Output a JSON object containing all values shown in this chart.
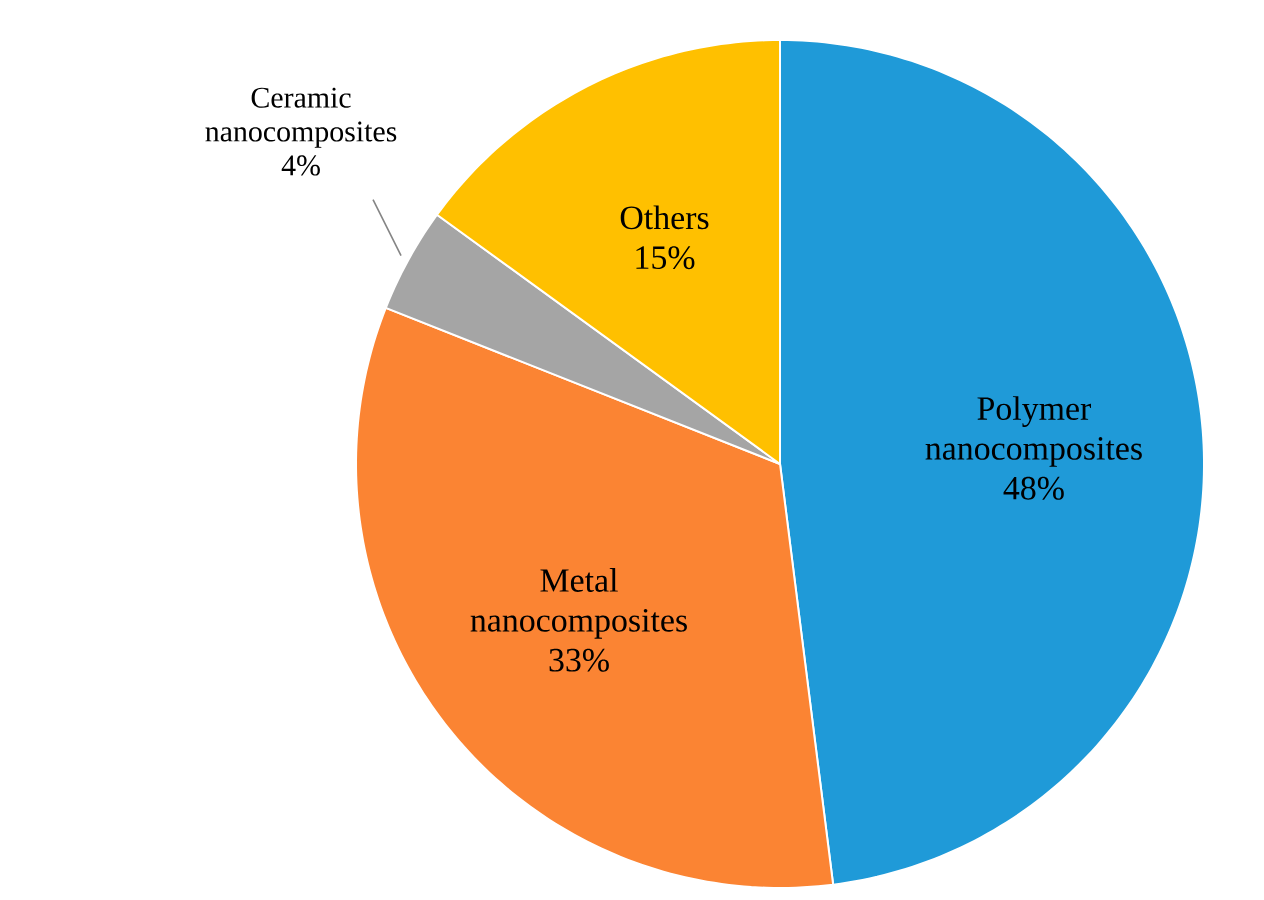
{
  "chart_data": {
    "type": "pie",
    "categories": [
      "Polymer nanocomposites",
      "Metal nanocomposites",
      "Ceramic nanocomposites",
      "Others"
    ],
    "values": [
      48,
      33,
      4,
      15
    ],
    "value_labels": [
      "48%",
      "33%",
      "4%",
      "15%"
    ],
    "colors": [
      "#1f9ad8",
      "#fb8433",
      "#a5a5a5",
      "#ffc000"
    ]
  }
}
